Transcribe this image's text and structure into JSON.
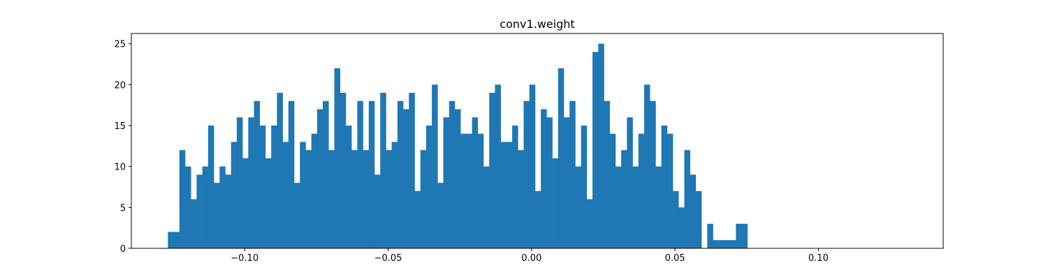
{
  "chart_data": {
    "type": "bar",
    "title": "conv1.weight",
    "xlabel": "",
    "ylabel": "",
    "xlim": [
      -0.1395,
      0.1435
    ],
    "ylim": [
      0,
      26.25
    ],
    "grid": false,
    "bar_color": "#1f77b4",
    "bin_start": -0.12675,
    "bin_width": 0.002,
    "values": [
      2,
      2,
      12,
      10,
      6,
      9,
      10,
      15,
      8,
      10,
      9,
      13,
      16,
      11,
      16,
      18,
      15,
      11,
      15,
      19,
      13,
      18,
      8,
      13,
      12,
      14,
      17,
      18,
      12,
      22,
      19,
      15,
      12,
      18,
      12,
      18,
      9,
      19,
      12,
      13,
      18,
      17,
      19,
      7,
      12,
      15,
      20,
      8,
      16,
      18,
      17,
      14,
      14,
      16,
      14,
      10,
      19,
      20,
      13,
      13,
      15,
      12,
      18,
      20,
      7,
      17,
      16,
      11,
      22,
      16,
      18,
      10,
      15,
      6,
      24,
      25,
      18,
      14,
      10,
      12,
      16,
      10,
      14,
      20,
      18,
      10,
      15,
      14,
      7,
      5,
      12,
      9,
      7,
      0,
      3,
      1,
      1,
      1,
      1,
      3,
      3
    ],
    "x_ticks": [
      {
        "value": -0.1,
        "label": "−0.10"
      },
      {
        "value": -0.05,
        "label": "−0.05"
      },
      {
        "value": 0.0,
        "label": "0.00"
      },
      {
        "value": 0.05,
        "label": "0.05"
      },
      {
        "value": 0.1,
        "label": "0.10"
      }
    ],
    "y_ticks": [
      {
        "value": 0,
        "label": "0"
      },
      {
        "value": 5,
        "label": "5"
      },
      {
        "value": 10,
        "label": "10"
      },
      {
        "value": 15,
        "label": "15"
      },
      {
        "value": 20,
        "label": "20"
      },
      {
        "value": 25,
        "label": "25"
      }
    ]
  }
}
